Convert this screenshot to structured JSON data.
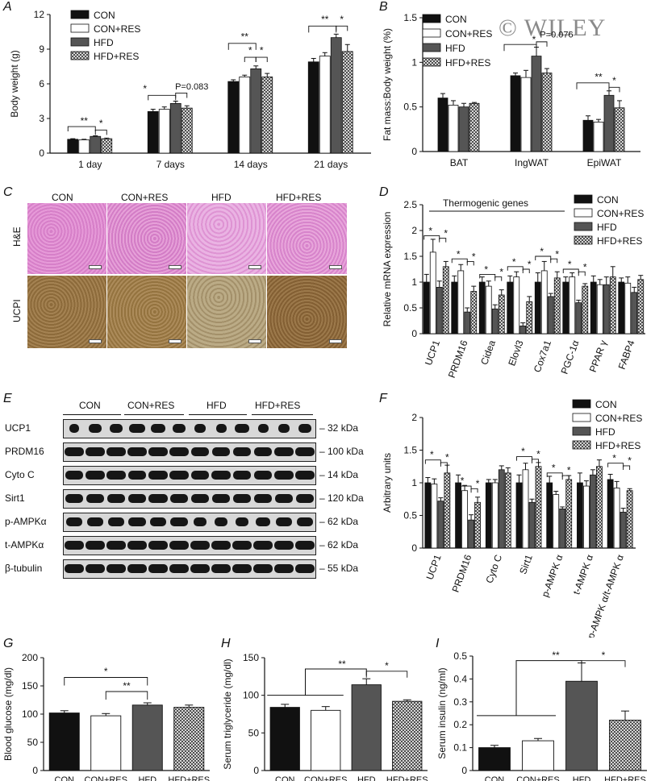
{
  "watermark": "© WILEY",
  "panel_labels": [
    "A",
    "B",
    "C",
    "D",
    "E",
    "F",
    "G",
    "H",
    "I"
  ],
  "legend_groups": [
    "CON",
    "CON+RES",
    "HFD",
    "HFD+RES"
  ],
  "group_styles": {
    "CON": "#111111",
    "CON+RES": "#ffffff",
    "HFD": "#555555",
    "HFD+RES": "hatch"
  },
  "chart_data": [
    {
      "panel": "A",
      "type": "bar",
      "categories": [
        "1 day",
        "7 days",
        "14 days",
        "21 days"
      ],
      "ylabel": "Body weight (g)",
      "ylim": [
        0,
        12
      ],
      "yticks": [
        0,
        3,
        6,
        9,
        12
      ],
      "series": [
        {
          "name": "CON",
          "values": [
            1.2,
            3.6,
            6.2,
            7.9
          ],
          "errors": [
            0.05,
            0.2,
            0.15,
            0.3
          ]
        },
        {
          "name": "CON+RES",
          "values": [
            1.15,
            3.8,
            6.6,
            8.4
          ],
          "errors": [
            0.05,
            0.2,
            0.15,
            0.3
          ]
        },
        {
          "name": "HFD",
          "values": [
            1.45,
            4.3,
            7.3,
            10.0
          ],
          "errors": [
            0.05,
            0.2,
            0.25,
            0.3
          ]
        },
        {
          "name": "HFD+RES",
          "values": [
            1.25,
            3.9,
            6.6,
            8.8
          ],
          "errors": [
            0.05,
            0.2,
            0.3,
            0.6
          ]
        }
      ],
      "annotations": [
        "**",
        "*",
        "*",
        "P=0.083",
        "**",
        "*",
        "*",
        "**",
        "*"
      ]
    },
    {
      "panel": "B",
      "type": "bar",
      "categories": [
        "BAT",
        "IngWAT",
        "EpiWAT"
      ],
      "ylabel": "Fat mass:Body weight (%)",
      "ylim": [
        0,
        1.5
      ],
      "yticks": [
        0,
        0.5,
        1.0,
        1.5
      ],
      "series": [
        {
          "name": "CON",
          "values": [
            0.6,
            0.85,
            0.35
          ],
          "errors": [
            0.05,
            0.03,
            0.05
          ]
        },
        {
          "name": "CON+RES",
          "values": [
            0.52,
            0.83,
            0.33
          ],
          "errors": [
            0.05,
            0.08,
            0.03
          ]
        },
        {
          "name": "HFD",
          "values": [
            0.5,
            1.07,
            0.63
          ],
          "errors": [
            0.04,
            0.1,
            0.05
          ]
        },
        {
          "name": "HFD+RES",
          "values": [
            0.54,
            0.88,
            0.49
          ],
          "errors": [
            0.01,
            0.05,
            0.08
          ]
        }
      ],
      "annotations": [
        "*",
        "P=0.076",
        "**",
        "*"
      ]
    },
    {
      "panel": "D",
      "type": "bar",
      "title": "Thermogenic genes",
      "categories": [
        "UCP1",
        "PRDM16",
        "Cidea",
        "Elovl3",
        "Cox7a1",
        "PGC-1α",
        "PPAR γ",
        "FABP4"
      ],
      "ylabel": "Relative mRNA expression",
      "ylim": [
        0,
        2.5
      ],
      "yticks": [
        0,
        0.5,
        1.0,
        1.5,
        2.0,
        2.5
      ],
      "series": [
        {
          "name": "CON",
          "values": [
            1.0,
            1.0,
            1.0,
            1.0,
            1.0,
            1.0,
            1.0,
            1.0
          ],
          "errors": [
            0.15,
            0.12,
            0.1,
            0.12,
            0.18,
            0.1,
            0.12,
            0.08
          ]
        },
        {
          "name": "CON+RES",
          "values": [
            1.58,
            1.22,
            0.92,
            1.1,
            1.22,
            1.1,
            0.95,
            0.98
          ],
          "errors": [
            0.25,
            0.12,
            0.1,
            0.1,
            0.18,
            0.08,
            0.1,
            0.12
          ]
        },
        {
          "name": "HFD",
          "values": [
            0.9,
            0.42,
            0.48,
            0.15,
            0.72,
            0.6,
            0.95,
            0.8
          ],
          "errors": [
            0.12,
            0.08,
            0.08,
            0.06,
            0.06,
            0.05,
            0.15,
            0.1
          ]
        },
        {
          "name": "HFD+RES",
          "values": [
            1.3,
            0.82,
            0.75,
            0.62,
            1.08,
            0.92,
            1.1,
            1.05
          ],
          "errors": [
            0.1,
            0.1,
            0.1,
            0.1,
            0.12,
            0.05,
            0.2,
            0.08
          ]
        }
      ],
      "annotations": [
        "*",
        "*",
        "*",
        "*",
        "*",
        "*",
        "*",
        "*",
        "*",
        "*",
        "*",
        "*",
        "*",
        "*",
        "*",
        "*"
      ]
    },
    {
      "panel": "F",
      "type": "bar",
      "categories": [
        "UCP1",
        "PRDM16",
        "Cyto C",
        "Sirt1",
        "p-AMPK α",
        "t-AMPK α",
        "p-AMPK α/t-AMPK α"
      ],
      "ylabel": "Arbitrary units",
      "ylim": [
        0,
        2.0
      ],
      "yticks": [
        0,
        0.5,
        1.0,
        1.5,
        2.0
      ],
      "series": [
        {
          "name": "CON",
          "values": [
            1.0,
            1.0,
            1.0,
            1.0,
            1.0,
            1.0,
            1.05
          ],
          "errors": [
            0.08,
            0.12,
            0.05,
            0.12,
            0.1,
            0.15,
            0.08
          ]
        },
        {
          "name": "CON+RES",
          "values": [
            0.98,
            0.88,
            1.0,
            1.2,
            0.82,
            0.95,
            0.92
          ],
          "errors": [
            0.08,
            0.08,
            0.05,
            0.1,
            0.05,
            0.08,
            0.1
          ]
        },
        {
          "name": "HFD",
          "values": [
            0.72,
            0.43,
            1.2,
            0.7,
            0.6,
            1.12,
            0.55
          ],
          "errors": [
            0.05,
            0.08,
            0.06,
            0.05,
            0.03,
            0.08,
            0.06
          ]
        },
        {
          "name": "HFD+RES",
          "values": [
            1.15,
            0.7,
            1.15,
            1.25,
            1.05,
            1.25,
            0.88
          ],
          "errors": [
            0.12,
            0.08,
            0.08,
            0.06,
            0.06,
            0.1,
            0.03
          ]
        }
      ],
      "annotations": [
        "*",
        "*",
        "*",
        "*",
        "*",
        "*",
        "*",
        "*",
        "*",
        "*",
        "**",
        "**",
        "*",
        "*"
      ]
    },
    {
      "panel": "G",
      "type": "bar",
      "categories": [
        "CON",
        "CON+RES",
        "HFD",
        "HFD+RES"
      ],
      "ylabel": "Blood glucose (mg/dl)",
      "ylim": [
        0,
        200
      ],
      "yticks": [
        0,
        50,
        100,
        150,
        200
      ],
      "values": [
        102,
        97,
        116,
        112
      ],
      "errors": [
        4,
        4,
        4,
        4
      ],
      "annotations": [
        "*",
        "**"
      ]
    },
    {
      "panel": "H",
      "type": "bar",
      "categories": [
        "CON",
        "CON+RES",
        "HFD",
        "HFD+RES"
      ],
      "ylabel": "Serum triglyceride (mg/dl)",
      "ylim": [
        0,
        150
      ],
      "yticks": [
        0,
        50,
        100,
        150
      ],
      "values": [
        84,
        80,
        114,
        92
      ],
      "errors": [
        4,
        5,
        8,
        2
      ],
      "annotations": [
        "**",
        "*"
      ]
    },
    {
      "panel": "I",
      "type": "bar",
      "categories": [
        "CON",
        "CON+RES",
        "HFD",
        "HFD+RES"
      ],
      "ylabel": "Serum insulin (ng/ml)",
      "ylim": [
        0,
        0.5
      ],
      "yticks": [
        0,
        0.1,
        0.2,
        0.3,
        0.4,
        0.5
      ],
      "values": [
        0.1,
        0.13,
        0.39,
        0.22
      ],
      "errors": [
        0.01,
        0.01,
        0.08,
        0.04
      ],
      "annotations": [
        "**",
        "*"
      ]
    }
  ],
  "histology": {
    "columns": [
      "CON",
      "CON+RES",
      "HFD",
      "HFD+RES"
    ],
    "rows": [
      "H&E",
      "UCPI"
    ]
  },
  "blot": {
    "groups": [
      "CON",
      "CON+RES",
      "HFD",
      "HFD+RES"
    ],
    "rows": [
      {
        "label": "UCP1",
        "kda": "32 kDa"
      },
      {
        "label": "PRDM16",
        "kda": "100 kDa"
      },
      {
        "label": "Cyto C",
        "kda": "14 kDa"
      },
      {
        "label": "Sirt1",
        "kda": "120 kDa"
      },
      {
        "label": "p-AMPKα",
        "kda": "62 kDa"
      },
      {
        "label": "t-AMPKα",
        "kda": "62 kDa"
      },
      {
        "label": "β-tubulin",
        "kda": "55 kDa"
      }
    ]
  }
}
